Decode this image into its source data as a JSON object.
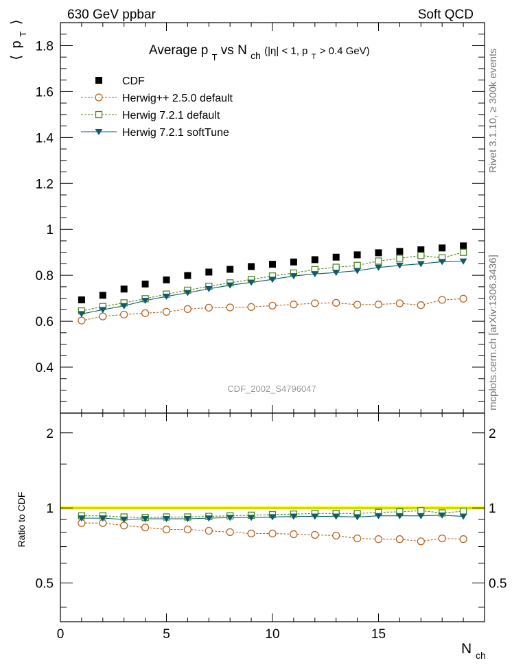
{
  "header": {
    "left": "630 GeV ppbar",
    "right": "Soft QCD"
  },
  "side_labels": {
    "rivet": "Rivet 3.1.10, ≥ 300k events",
    "mcplots": "mcplots.cern.ch [arXiv:1306.3436]"
  },
  "chart_data": {
    "type": "scatter",
    "title": "Average p_T vs N_ch (|η| < 1, p_T > 0.4 GeV)",
    "title_parts": {
      "pre": "Average p",
      "sub1": "T",
      "mid": " vs N",
      "sub2": "ch",
      "cut1": " (|η| < 1, p",
      "sub3": "T",
      "cut2": " > 0.4 GeV)"
    },
    "analysis_id": "CDF_2002_S4796047",
    "ylabel": "⟨ p_T ⟩",
    "ylabel_parts": {
      "open": "⟨",
      "p": "p",
      "sub": "T",
      "close": "⟩"
    },
    "xlabel": "N_ch",
    "xlabel_parts": {
      "main": "N",
      "sub": "ch"
    },
    "ratio_ylabel": "Ratio to CDF",
    "xlim": [
      0,
      20
    ],
    "ylim": [
      0.2,
      1.9
    ],
    "ratio_ylim": [
      0.35,
      2.4
    ],
    "x_ticks": [
      0,
      5,
      10,
      15
    ],
    "x_tick_labels": [
      "0",
      "5",
      "10",
      "15"
    ],
    "y_ticks": [
      0.4,
      0.6,
      0.8,
      1.0,
      1.2,
      1.4,
      1.6,
      1.8
    ],
    "y_tick_labels": [
      "0.4",
      "0.6",
      "0.8",
      "1",
      "1.2",
      "1.4",
      "1.6",
      "1.8"
    ],
    "ratio_ticks": [
      0.5,
      1,
      2
    ],
    "ratio_tick_labels": [
      "0.5",
      "1",
      "2"
    ],
    "x": [
      1,
      2,
      3,
      4,
      5,
      6,
      7,
      8,
      9,
      10,
      11,
      12,
      13,
      14,
      15,
      16,
      17,
      18,
      19
    ],
    "series": [
      {
        "name": "CDF",
        "color": "#000000",
        "marker": "filled-square",
        "line": "none",
        "values": [
          0.693,
          0.713,
          0.74,
          0.762,
          0.78,
          0.799,
          0.814,
          0.826,
          0.838,
          0.848,
          0.858,
          0.868,
          0.879,
          0.889,
          0.898,
          0.904,
          0.911,
          0.919,
          0.928
        ]
      },
      {
        "name": "Herwig++ 2.5.0 default",
        "color": "#b8631e",
        "marker": "open-circle",
        "line": "dashed",
        "values": [
          0.603,
          0.621,
          0.629,
          0.635,
          0.641,
          0.653,
          0.659,
          0.66,
          0.662,
          0.668,
          0.673,
          0.678,
          0.68,
          0.672,
          0.673,
          0.678,
          0.67,
          0.693,
          0.698
        ],
        "ratio": [
          0.87,
          0.87,
          0.85,
          0.835,
          0.82,
          0.82,
          0.81,
          0.8,
          0.79,
          0.79,
          0.785,
          0.78,
          0.775,
          0.755,
          0.75,
          0.75,
          0.735,
          0.755,
          0.75
        ]
      },
      {
        "name": "Herwig 7.2.1 default",
        "color": "#4a8a1a",
        "marker": "open-square",
        "line": "dashed",
        "values": [
          0.645,
          0.664,
          0.68,
          0.698,
          0.718,
          0.735,
          0.752,
          0.767,
          0.782,
          0.797,
          0.81,
          0.825,
          0.835,
          0.843,
          0.862,
          0.874,
          0.886,
          0.876,
          0.9
        ],
        "ratio": [
          0.93,
          0.93,
          0.92,
          0.915,
          0.92,
          0.92,
          0.925,
          0.93,
          0.935,
          0.94,
          0.945,
          0.95,
          0.95,
          0.95,
          0.96,
          0.965,
          0.975,
          0.955,
          0.97
        ]
      },
      {
        "name": "Herwig 7.2.1 softTune",
        "color": "#0f5a6b",
        "marker": "filled-triangle-down",
        "line": "solid",
        "values": [
          0.632,
          0.65,
          0.667,
          0.69,
          0.708,
          0.724,
          0.741,
          0.757,
          0.769,
          0.782,
          0.797,
          0.806,
          0.812,
          0.82,
          0.834,
          0.843,
          0.85,
          0.859,
          0.861
        ],
        "ratio": [
          0.91,
          0.91,
          0.9,
          0.905,
          0.905,
          0.905,
          0.91,
          0.915,
          0.915,
          0.92,
          0.925,
          0.925,
          0.925,
          0.92,
          0.93,
          0.93,
          0.93,
          0.935,
          0.925
        ]
      }
    ],
    "legend_position": "top-left",
    "reference_band_color": "#ffff00"
  }
}
